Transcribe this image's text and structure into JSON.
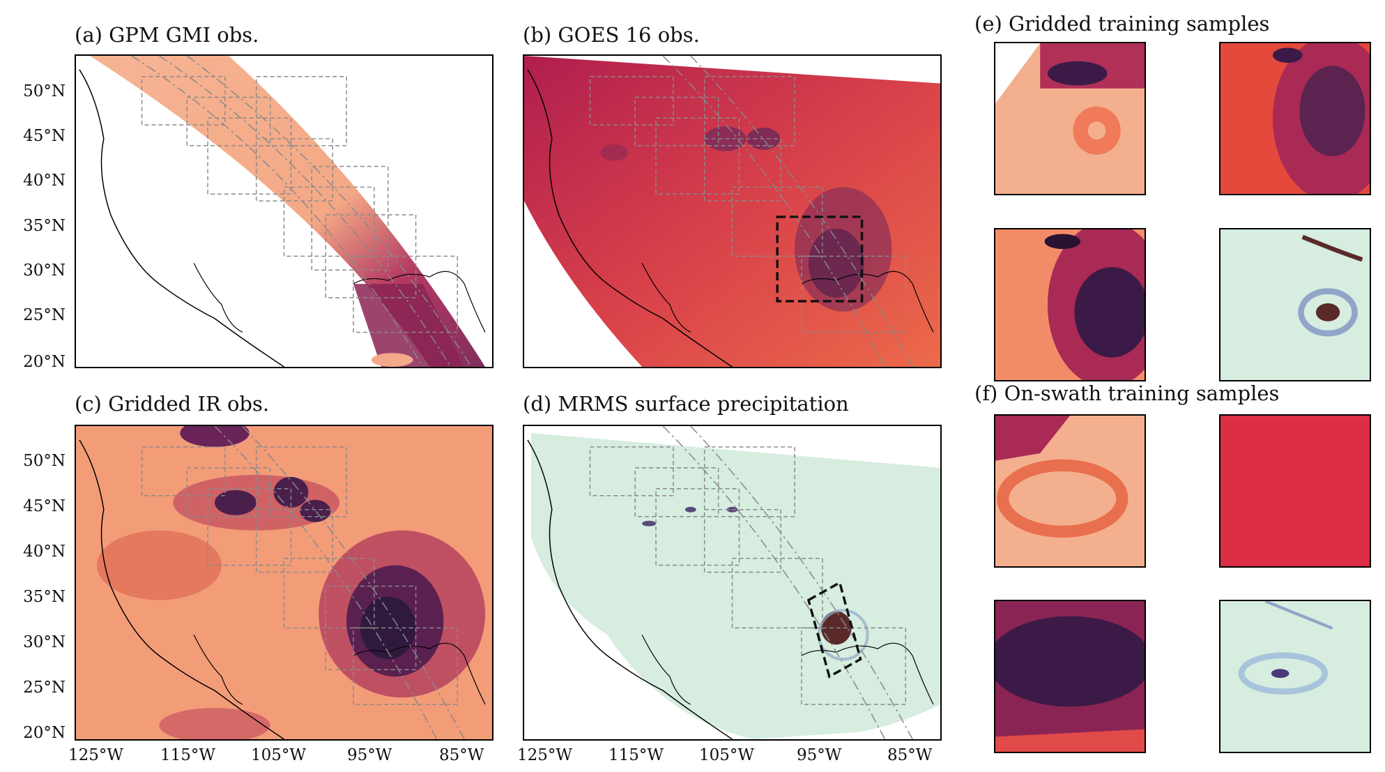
{
  "panels": {
    "a": {
      "title": "(a) GPM GMI obs."
    },
    "b": {
      "title": "(b) GOES 16 obs."
    },
    "c": {
      "title": "(c) Gridded IR obs."
    },
    "d": {
      "title": "(d) MRMS surface precipitation"
    }
  },
  "section_e": {
    "title": "(e) Gridded training samples"
  },
  "section_f": {
    "title": "(f) On-swath training samples"
  },
  "axes": {
    "lat_ticks": [
      "50°N",
      "45°N",
      "40°N",
      "35°N",
      "30°N",
      "25°N",
      "20°N"
    ],
    "lon_ticks": [
      "125°W",
      "115°W",
      "105°W",
      "95°W",
      "85°W"
    ]
  },
  "colors": {
    "ir_light": "#f4a07a",
    "ir_mid": "#e0424e",
    "ir_dark": "#3b1a47",
    "precip_bg": "#d6ede0",
    "precip_storm": "#5a2a2a"
  }
}
